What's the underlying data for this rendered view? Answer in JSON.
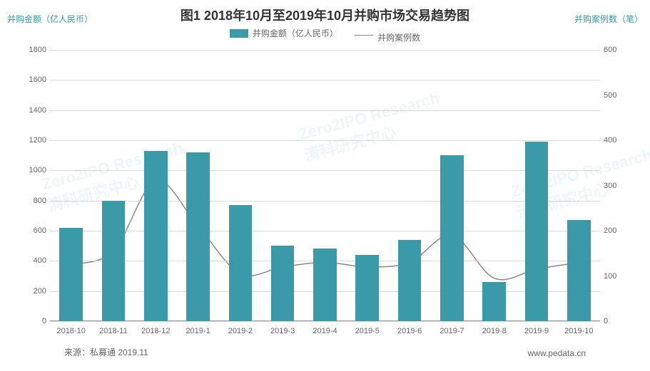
{
  "title": "图1 2018年10月至2019年10月并购市场交易趋势图",
  "title_fontsize": 18,
  "title_color": "#333333",
  "y_left_label": "并购金额（亿人民币）",
  "y_right_label": "并购案例数（笔）",
  "axis_label_color": "#3a9aa8",
  "axis_label_fontsize": 12,
  "legend": {
    "bar_label": "并购金额（亿人民币）",
    "line_label": "并购案例数",
    "text_color": "#666666"
  },
  "chart": {
    "type": "bar+line",
    "categories": [
      "2018-10",
      "2018-11",
      "2018-12",
      "2019-1",
      "2019-2",
      "2019-3",
      "2019-4",
      "2019-5",
      "2019-6",
      "2019-7",
      "2019-8",
      "2019-9",
      "2019-10"
    ],
    "bar_values": [
      620,
      800,
      1130,
      1120,
      770,
      500,
      480,
      440,
      540,
      1100,
      260,
      1190,
      670
    ],
    "line_values": [
      125,
      155,
      310,
      210,
      105,
      120,
      130,
      120,
      130,
      190,
      95,
      115,
      130
    ],
    "y_left": {
      "min": 0,
      "max": 1800,
      "step": 200
    },
    "y_right": {
      "min": 0,
      "max": 600,
      "step": 100
    },
    "bar_color": "#3a9aa8",
    "bar_width_ratio": 0.55,
    "line_color": "#888888",
    "line_width": 1.5,
    "grid_color": "#d9d9d9",
    "axis_color": "#999999",
    "tick_color": "#666666",
    "background_color": "#ffffff"
  },
  "footer": {
    "source": "来源：私募通 2019.11",
    "url": "www.pedata.cn",
    "color": "#666666"
  },
  "watermark": {
    "text_en": "Zero2IPO Research",
    "text_cn": "清科研究中心",
    "color": "#3a9aa8"
  }
}
